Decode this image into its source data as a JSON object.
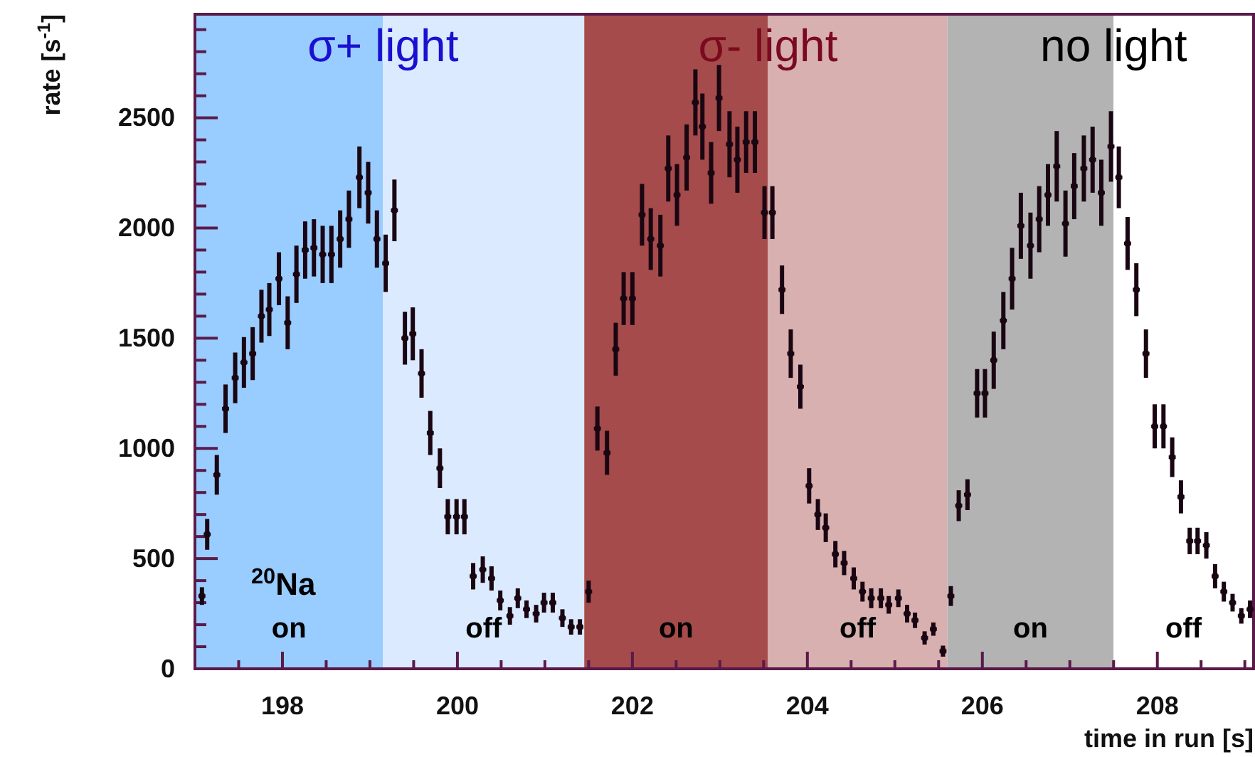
{
  "chart_data": {
    "type": "scatter",
    "xlabel": "time in run [s]",
    "ylabel": "rate [s$^{-1}$]",
    "marker": "square",
    "grid": false,
    "xlim": [
      197,
      209.1
    ],
    "ylim": [
      0,
      2970
    ],
    "xticks": [
      {
        "value": 197.5,
        "label": null
      },
      {
        "value": 198,
        "label": "198"
      },
      {
        "value": 198.5,
        "label": null
      },
      {
        "value": 199,
        "label": null
      },
      {
        "value": 199.5,
        "label": null
      },
      {
        "value": 200,
        "label": "200"
      },
      {
        "value": 200.5,
        "label": null
      },
      {
        "value": 201,
        "label": null
      },
      {
        "value": 201.5,
        "label": null
      },
      {
        "value": 202,
        "label": "202"
      },
      {
        "value": 202.5,
        "label": null
      },
      {
        "value": 203,
        "label": null
      },
      {
        "value": 203.5,
        "label": null
      },
      {
        "value": 204,
        "label": "204"
      },
      {
        "value": 204.5,
        "label": null
      },
      {
        "value": 205,
        "label": null
      },
      {
        "value": 205.5,
        "label": null
      },
      {
        "value": 206,
        "label": "206"
      },
      {
        "value": 206.5,
        "label": null
      },
      {
        "value": 207,
        "label": null
      },
      {
        "value": 207.5,
        "label": null
      },
      {
        "value": 208,
        "label": "208"
      },
      {
        "value": 208.5,
        "label": null
      },
      {
        "value": 209,
        "label": null
      }
    ],
    "yticks": [
      0,
      {
        "value": 100,
        "label": null
      },
      {
        "value": 200,
        "label": null
      },
      {
        "value": 300,
        "label": null
      },
      {
        "value": 400,
        "label": null
      },
      500,
      {
        "value": 600,
        "label": null
      },
      {
        "value": 700,
        "label": null
      },
      {
        "value": 800,
        "label": null
      },
      {
        "value": 900,
        "label": null
      },
      1000,
      {
        "value": 1100,
        "label": null
      },
      {
        "value": 1200,
        "label": null
      },
      {
        "value": 1300,
        "label": null
      },
      {
        "value": 1400,
        "label": null
      },
      1500,
      {
        "value": 1600,
        "label": null
      },
      {
        "value": 1700,
        "label": null
      },
      {
        "value": 1800,
        "label": null
      },
      {
        "value": 1900,
        "label": null
      },
      2000,
      {
        "value": 2100,
        "label": null
      },
      {
        "value": 2200,
        "label": null
      },
      {
        "value": 2300,
        "label": null
      },
      {
        "value": 2400,
        "label": null
      },
      2500,
      {
        "value": 2600,
        "label": null
      },
      {
        "value": 2700,
        "label": null
      },
      {
        "value": 2800,
        "label": null
      },
      {
        "value": 2900,
        "label": null
      }
    ],
    "bands": [
      {
        "axis": "x",
        "from": 197,
        "to": 199.15,
        "label": "on",
        "color": "#99ccff"
      },
      {
        "axis": "x",
        "from": 199.15,
        "to": 201.45,
        "label": "off",
        "color": "#dbeaff"
      },
      {
        "axis": "x",
        "from": 201.45,
        "to": 203.55,
        "label": "on",
        "color": "#a54b4b"
      },
      {
        "axis": "x",
        "from": 203.55,
        "to": 205.6,
        "label": "off",
        "color": "#d8b0b0"
      },
      {
        "axis": "x",
        "from": 205.6,
        "to": 207.5,
        "label": "on",
        "color": "#b3b3b3"
      },
      {
        "axis": "x",
        "from": 207.5,
        "to": 209.1,
        "label": "off",
        "color": "#ffffff"
      }
    ],
    "annotations": [
      "σ+ light",
      "σ- light",
      "no light",
      "$^{20}$Na"
    ],
    "series": [
      {
        "color": "#1a0612",
        "x": [
          197.08,
          197.14,
          197.25,
          197.35,
          197.46,
          197.56,
          197.66,
          197.76,
          197.85,
          197.96,
          198.06,
          198.16,
          198.26,
          198.36,
          198.46,
          198.56,
          198.66,
          198.76,
          198.88,
          198.98,
          199.08,
          199.18,
          199.28,
          199.4,
          199.49,
          199.59,
          199.69,
          199.8,
          199.89,
          199.99,
          200.08,
          200.18,
          200.29,
          200.39,
          200.49,
          200.6,
          200.69,
          200.79,
          200.9,
          200.99,
          201.09,
          201.2,
          201.3,
          201.4,
          201.5,
          201.6,
          201.71,
          201.81,
          201.9,
          202.0,
          202.11,
          202.21,
          202.32,
          202.41,
          202.51,
          202.62,
          202.72,
          202.8,
          202.9,
          202.99,
          203.11,
          203.2,
          203.3,
          203.4,
          203.51,
          203.6,
          203.71,
          203.81,
          203.92,
          204.02,
          204.12,
          204.21,
          204.32,
          204.42,
          204.53,
          204.63,
          204.73,
          204.84,
          204.93,
          205.04,
          205.14,
          205.23,
          205.34,
          205.44,
          205.55,
          205.64,
          205.73,
          205.83,
          205.94,
          206.03,
          206.13,
          206.24,
          206.34,
          206.44,
          206.55,
          206.65,
          206.75,
          206.85,
          206.95,
          207.05,
          207.16,
          207.26,
          207.36,
          207.47,
          207.56,
          207.66,
          207.76,
          207.87,
          207.97,
          208.07,
          208.17,
          208.27,
          208.37,
          208.46,
          208.56,
          208.66,
          208.76,
          208.86,
          208.96,
          209.06
        ],
        "values": [
          330,
          610,
          880,
          1180,
          1320,
          1390,
          1430,
          1600,
          1630,
          1770,
          1570,
          1790,
          1900,
          1910,
          1880,
          1880,
          1950,
          2040,
          2230,
          2160,
          1950,
          1840,
          2080,
          1500,
          1520,
          1340,
          1070,
          910,
          690,
          690,
          690,
          420,
          450,
          410,
          310,
          240,
          320,
          270,
          250,
          300,
          300,
          230,
          190,
          190,
          350,
          1090,
          980,
          1450,
          1680,
          1680,
          2060,
          1950,
          1920,
          2270,
          2150,
          2320,
          2570,
          2460,
          2250,
          2590,
          2380,
          2310,
          2390,
          2390,
          2070,
          2070,
          1720,
          1430,
          1280,
          830,
          700,
          640,
          520,
          480,
          410,
          350,
          320,
          320,
          290,
          320,
          250,
          220,
          140,
          180,
          80,
          330,
          740,
          790,
          1250,
          1250,
          1400,
          1580,
          1770,
          2010,
          1920,
          2040,
          2150,
          2280,
          2020,
          2190,
          2270,
          2310,
          2160,
          2370,
          2230,
          1930,
          1720,
          1430,
          1100,
          1100,
          960,
          780,
          580,
          580,
          560,
          420,
          350,
          300,
          240,
          270
        ],
        "errors": [
          40,
          70,
          90,
          110,
          115,
          115,
          120,
          120,
          120,
          120,
          120,
          130,
          130,
          130,
          130,
          130,
          130,
          130,
          140,
          140,
          130,
          130,
          140,
          120,
          120,
          110,
          100,
          90,
          80,
          80,
          80,
          60,
          60,
          55,
          45,
          40,
          45,
          40,
          40,
          45,
          45,
          40,
          35,
          35,
          50,
          100,
          100,
          120,
          120,
          120,
          140,
          140,
          140,
          150,
          140,
          150,
          150,
          150,
          140,
          150,
          150,
          150,
          140,
          140,
          120,
          120,
          110,
          110,
          100,
          80,
          70,
          65,
          60,
          55,
          50,
          45,
          45,
          45,
          40,
          40,
          40,
          35,
          30,
          30,
          25,
          45,
          70,
          70,
          110,
          110,
          130,
          130,
          140,
          150,
          150,
          150,
          140,
          160,
          150,
          150,
          150,
          150,
          150,
          160,
          140,
          120,
          120,
          110,
          100,
          100,
          90,
          75,
          60,
          60,
          60,
          55,
          45,
          40,
          35,
          40
        ],
        "xerrors": [
          0.04,
          0.04,
          0.04,
          0.04,
          0.04,
          0.04,
          0.04,
          0.04,
          0.04,
          0.04,
          0.04,
          0.04,
          0.04,
          0.04,
          0.04,
          0.04,
          0.04,
          0.04,
          0.04,
          0.04,
          0.04,
          0.04,
          0.04,
          0.04,
          0.04,
          0.04,
          0.04,
          0.04,
          0.04,
          0.04,
          0.04,
          0.04,
          0.04,
          0.04,
          0.04,
          0.04,
          0.04,
          0.04,
          0.04,
          0.04,
          0.04,
          0.04,
          0.04,
          0.04,
          0.04,
          0.04,
          0.04,
          0.04,
          0.04,
          0.04,
          0.04,
          0.04,
          0.04,
          0.04,
          0.04,
          0.04,
          0.04,
          0.04,
          0.04,
          0.04,
          0.04,
          0.04,
          0.04,
          0.04,
          0.04,
          0.04,
          0.04,
          0.04,
          0.04,
          0.04,
          0.04,
          0.04,
          0.04,
          0.04,
          0.04,
          0.04,
          0.04,
          0.04,
          0.04,
          0.04,
          0.04,
          0.04,
          0.04,
          0.04,
          0.04,
          0.04,
          0.04,
          0.04,
          0.04,
          0.04,
          0.04,
          0.04,
          0.04,
          0.04,
          0.04,
          0.04,
          0.04,
          0.04,
          0.04,
          0.04,
          0.04,
          0.04,
          0.04,
          0.04,
          0.04,
          0.04,
          0.04,
          0.04,
          0.04,
          0.04,
          0.04,
          0.04,
          0.04,
          0.04,
          0.04,
          0.04,
          0.04,
          0.04,
          0.04,
          0.04
        ]
      }
    ]
  }
}
